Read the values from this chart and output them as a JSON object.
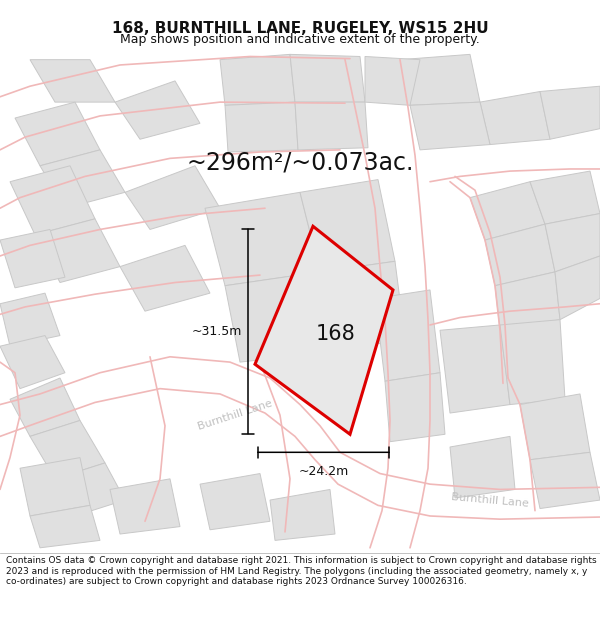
{
  "title": "168, BURNTHILL LANE, RUGELEY, WS15 2HU",
  "subtitle": "Map shows position and indicative extent of the property.",
  "area_text": "~296m²/~0.073ac.",
  "dim_vertical": "~31.5m",
  "dim_horizontal": "~24.2m",
  "house_number": "168",
  "street_label1": "Burnthill Lane",
  "street_label2": "Burnthill Lane",
  "footer": "Contains OS data © Crown copyright and database right 2021. This information is subject to Crown copyright and database rights 2023 and is reproduced with the permission of HM Land Registry. The polygons (including the associated geometry, namely x, y co-ordinates) are subject to Crown copyright and database rights 2023 Ordnance Survey 100026316.",
  "map_bg": "#f5f5f5",
  "road_line_color": "#f0b8b8",
  "plot_fill": "#e0e0e0",
  "plot_edge": "#c8c8c8",
  "highlight_color": "#dd0000",
  "highlight_fill": "#e8e8e8",
  "dim_color": "#111111",
  "text_color": "#111111",
  "street_color": "#c0c0c0",
  "title_fontsize": 11,
  "subtitle_fontsize": 9,
  "area_fontsize": 17,
  "dim_fontsize": 9,
  "street_fontsize": 8,
  "footer_fontsize": 6.5
}
